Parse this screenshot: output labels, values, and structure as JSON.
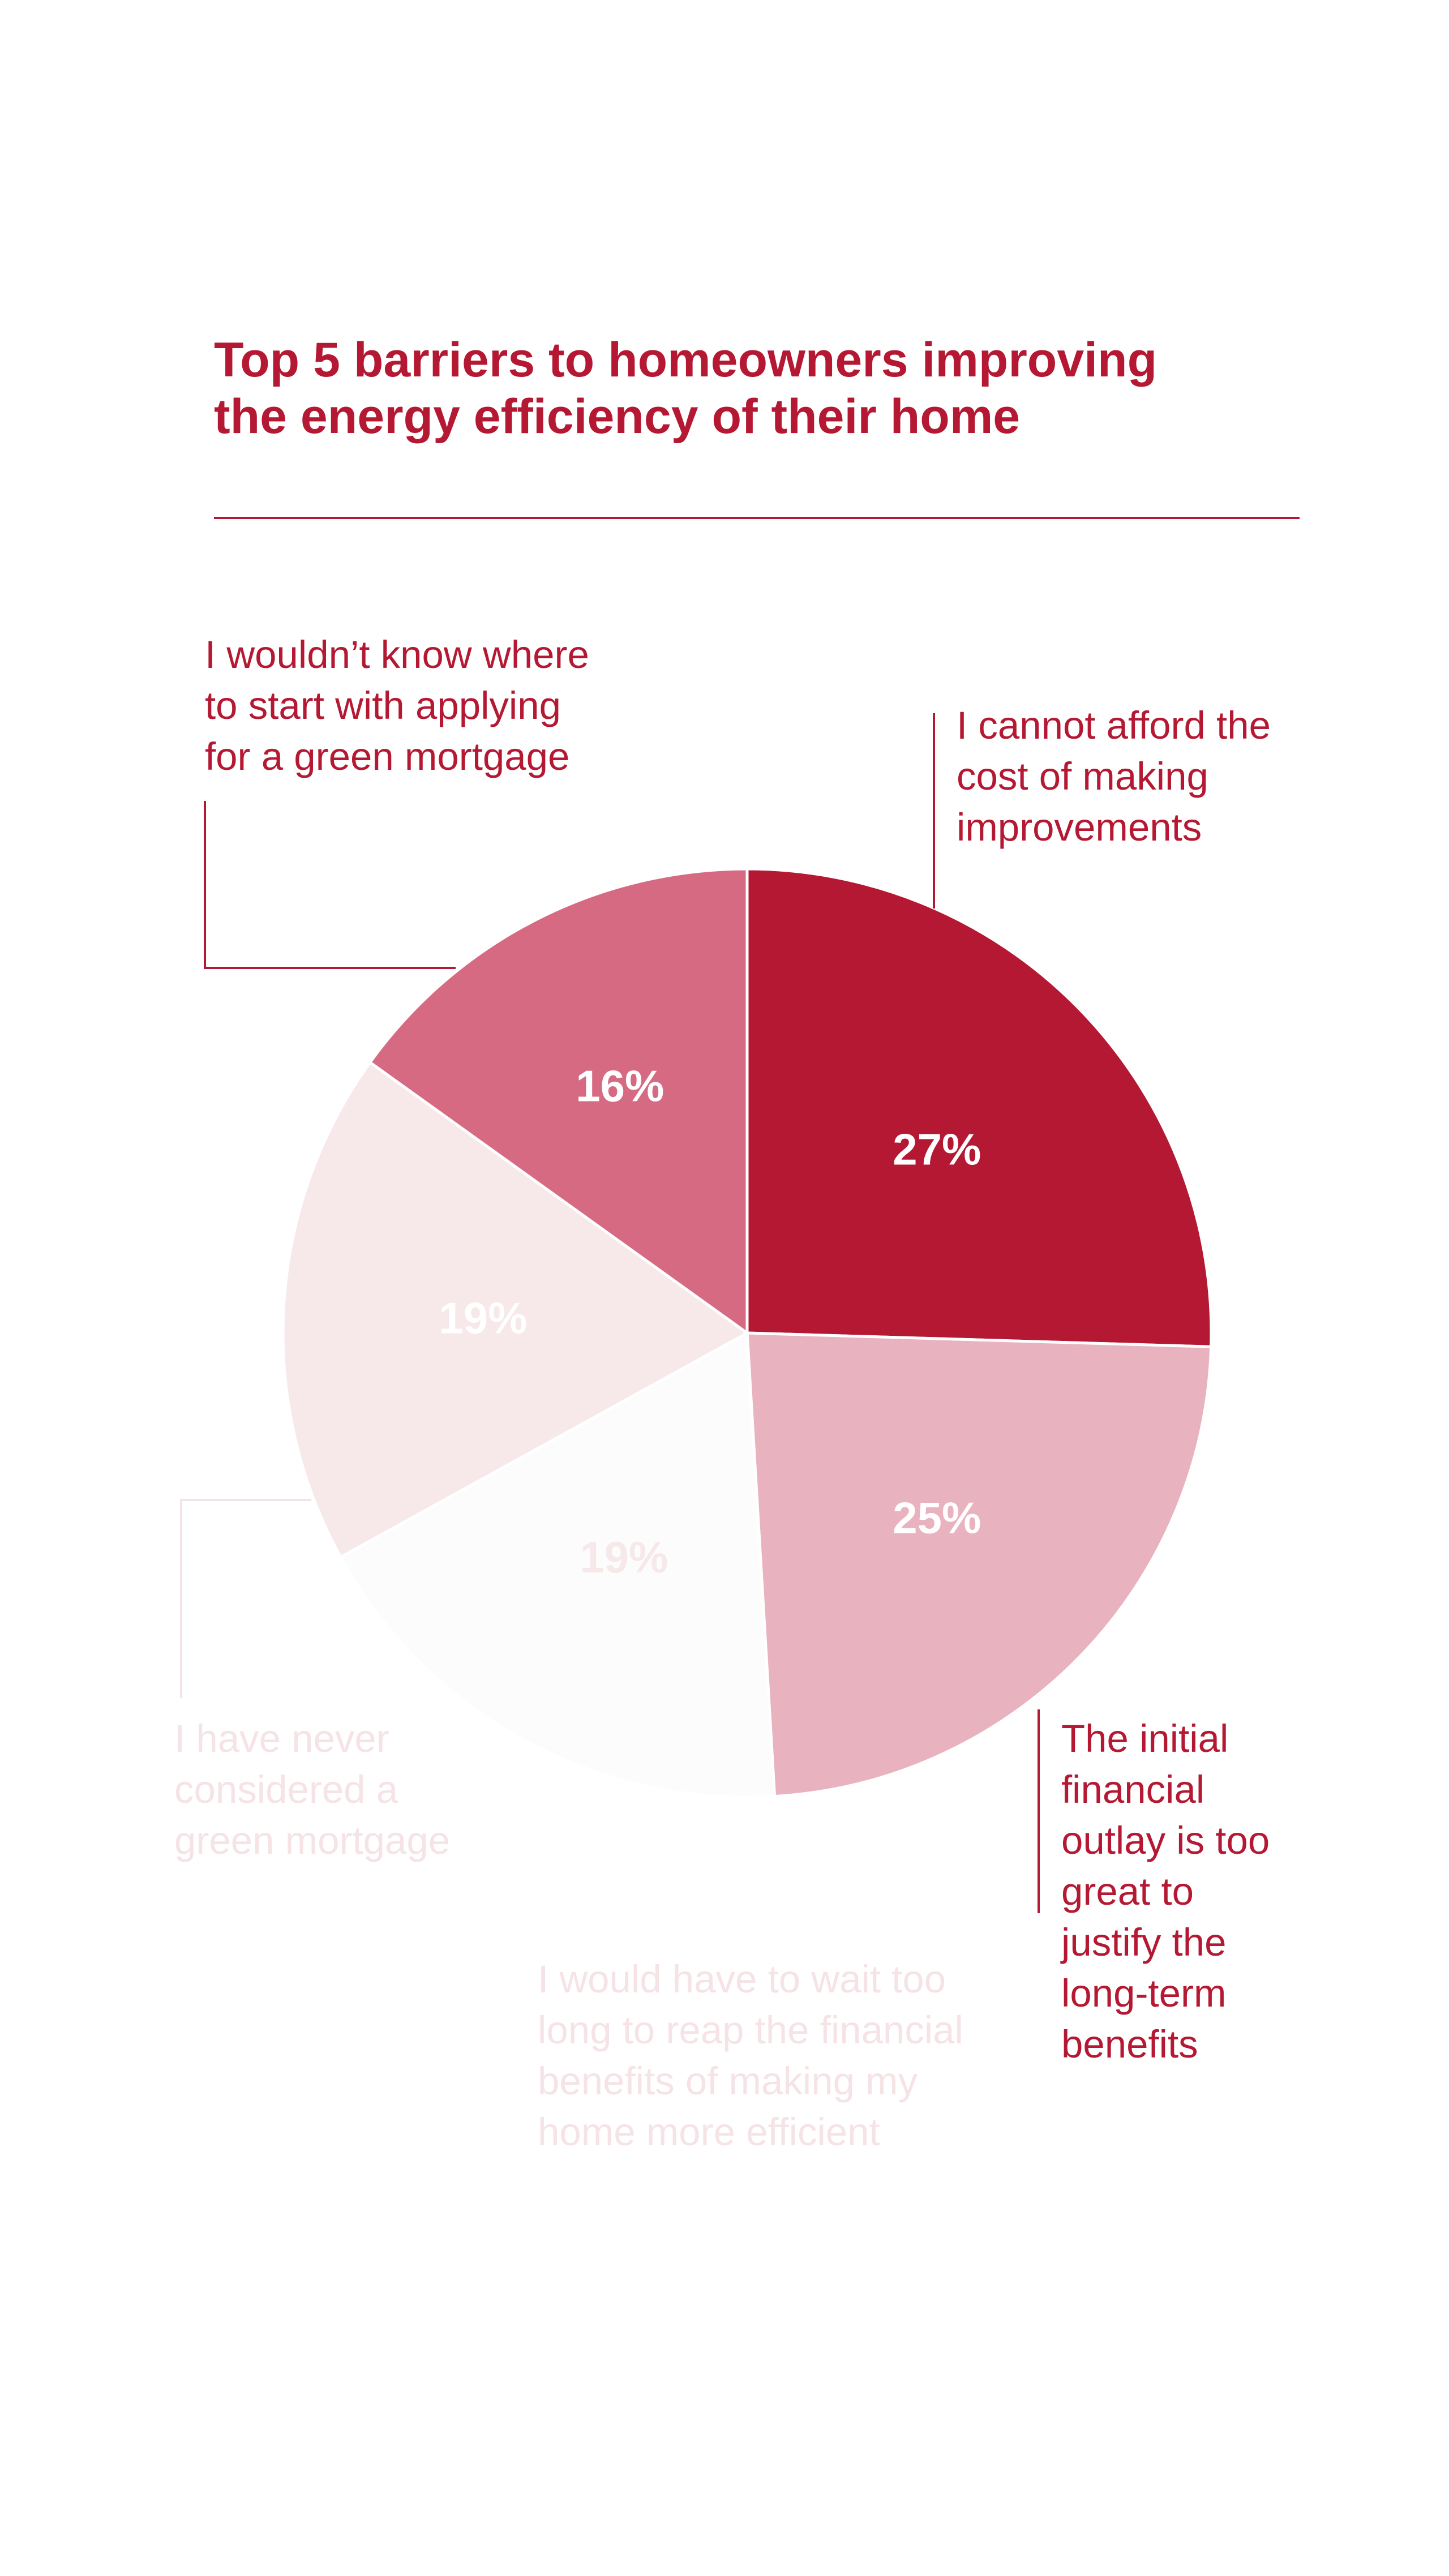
{
  "chart_data": {
    "type": "pie",
    "title": "Top 5 barriers to homeowners improving the energy efficiency of their home",
    "slices": [
      {
        "label": "I cannot afford the cost of making improvements",
        "value": 27,
        "value_label": "27%",
        "color": "#b51832",
        "value_text_color": "#ffffff",
        "label_color": "#b51832"
      },
      {
        "label": "The initial financial outlay is too great to justify the long-term benefits",
        "value": 25,
        "value_label": "25%",
        "color": "#e8b2bf",
        "value_text_color": "#ffffff",
        "label_color": "#b51832"
      },
      {
        "label": "I would have to wait too long to reap the financial benefits of making my home more efficient",
        "value": 19,
        "value_label": "19%",
        "color": "#fcfcfc",
        "value_text_color": "#f7e8ea",
        "label_color": "#f5e3e6"
      },
      {
        "label": "I have never considered a green mortgage",
        "value": 19,
        "value_label": "19%",
        "color": "#f7e8ea",
        "value_text_color": "#ffffff",
        "label_color": "#f5e3e6"
      },
      {
        "label": "I wouldn’t know where to start with applying for a green mortgage",
        "value": 16,
        "value_label": "16%",
        "color": "#d66a83",
        "value_text_color": "#ffffff",
        "label_color": "#b51832"
      }
    ]
  },
  "colors": {
    "accent": "#b51832",
    "background": "#ffffff"
  }
}
